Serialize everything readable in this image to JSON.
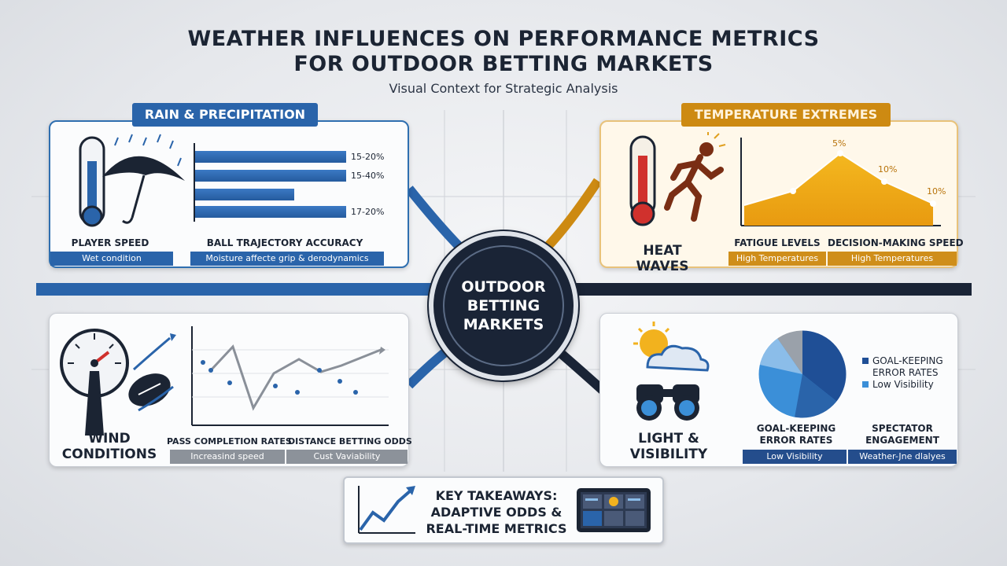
{
  "title_line1": "WEATHER INFLUENCES ON PERFORMANCE METRICS",
  "title_line2": "FOR OUTDOOR BETTING MARKETS",
  "subtitle": "Visual Context for Strategic Analysis",
  "hub": {
    "line1": "OUTDOOR",
    "line2": "BETTING",
    "line3": "MARKETS"
  },
  "rain": {
    "tag": "RAIN & PRECIPITATION",
    "bars": [
      {
        "label": "15-20%",
        "fraction": 1.0
      },
      {
        "label": "15-40%",
        "fraction": 1.0
      },
      {
        "label": "",
        "fraction": 0.66
      },
      {
        "label": "17-20%",
        "fraction": 1.0
      }
    ],
    "label_left": "PLAYER SPEED",
    "label_right": "BALL TRAJECTORY ACCURACY",
    "strip_left": "Wet condition",
    "strip_right": "Moisture affecte grip & derodynamics"
  },
  "temperature": {
    "tag": "TEMPERATURE EXTREMES",
    "caption": "HEAT WAVES",
    "chart_labels": [
      "5%",
      "10%",
      "10%"
    ],
    "label_left": "FATIGUE LEVELS",
    "label_right": "DECISION-MAKING SPEED",
    "strip_left": "High Temperatures",
    "strip_right": "High Temperatures"
  },
  "wind": {
    "caption_line1": "WIND",
    "caption_line2": "CONDITIONS",
    "label_left": "PASS COMPLETION RATES",
    "label_right": "DISTANCE BETTING ODDS",
    "strip_left": "Increasind speed",
    "strip_right": "Cust Vaviability"
  },
  "light": {
    "caption_line1": "LIGHT &",
    "caption_line2": "VISIBILITY",
    "legend1_line1": "GOAL-KEEPING",
    "legend1_line2": "ERROR RATES",
    "legend2": "Low Visibility",
    "label_left_line1": "GOAL-KEEPING",
    "label_left_line2": "ERROR RATES",
    "label_right_line1": "SPECTATOR",
    "label_right_line2": "ENGAGEMENT",
    "strip_left": "Low Visibility",
    "strip_right": "Weather-Jne dlalyes"
  },
  "takeaways": {
    "line1": "KEY TAKEAWAYS:",
    "line2": "ADAPTIVE ODDS &",
    "line3": "REAL-TIME METRICS"
  },
  "colors": {
    "blue": "#2a64aa",
    "amber": "#cd8a12",
    "navy": "#1a2436"
  }
}
